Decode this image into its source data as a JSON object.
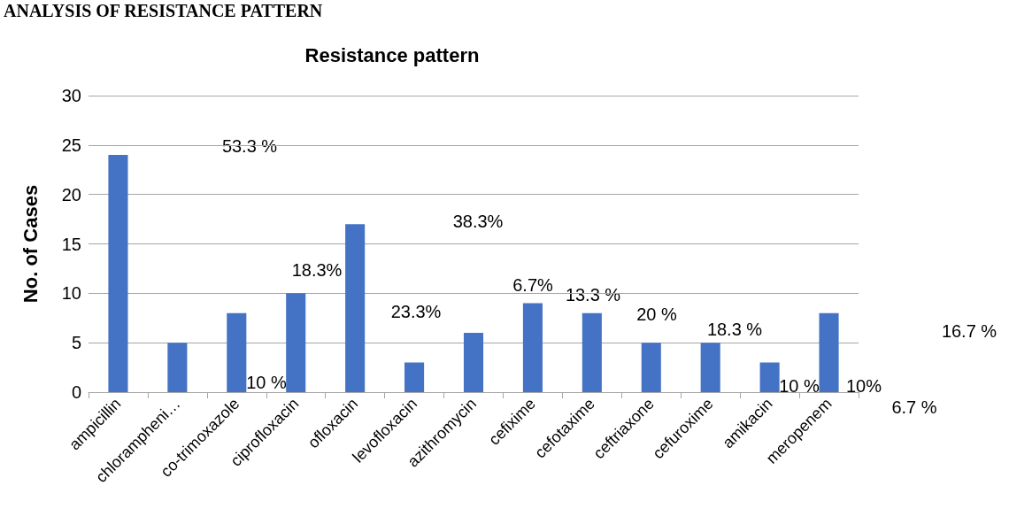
{
  "chart_data": {
    "type": "bar",
    "title": "Resistance pattern",
    "ylabel": "No. of Cases",
    "categories": [
      "ampicillin",
      "chlorampheni…",
      "co-trimoxazole",
      "ciprofloxacin",
      "ofloxacin",
      "levofloxacin",
      "azithromycin",
      "cefixime",
      "cefotaxime",
      "ceftriaxone",
      "cefuroxime",
      "amikacin",
      "meropenem"
    ],
    "values": [
      24,
      5,
      8,
      10,
      17,
      3,
      6,
      9,
      8,
      5,
      5,
      3,
      8
    ],
    "color": "#4472c4",
    "ylim": [
      0,
      30
    ],
    "yticks": [
      0,
      5,
      10,
      15,
      20,
      25,
      30
    ],
    "grid": "y",
    "annotations": [
      "ANALYSIS OF RESISTANCE PATTERN",
      "53.3 %",
      "10 %",
      "18.3%",
      "23.3%",
      "38.3%",
      "6.7%",
      "13.3 %",
      "20 %",
      "18.3 %",
      "10 %",
      "10%",
      "6.7 %",
      "16.7 %"
    ]
  }
}
